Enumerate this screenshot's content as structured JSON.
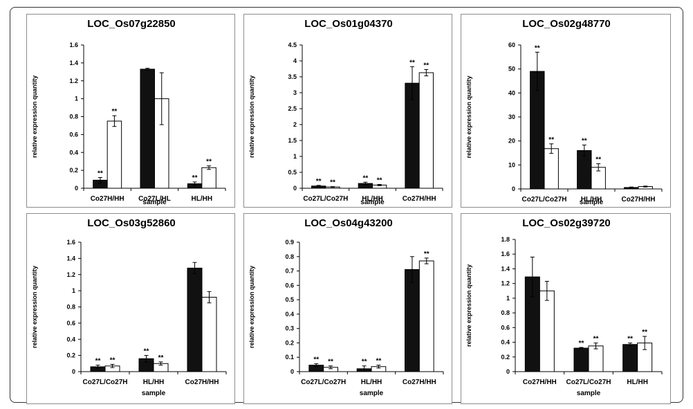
{
  "chart_data": [
    {
      "type": "bar",
      "title": "LOC_Os07g22850",
      "xlabel": "sample",
      "ylabel": "relative expression quantity",
      "ylim": [
        0,
        1.6
      ],
      "yticks": [
        "0",
        "0.2",
        "0.4",
        "0.6",
        "0.8",
        "1",
        "1.2",
        "1.4",
        "1.6"
      ],
      "categories": [
        "Co27H/HH",
        "Co27L/HL",
        "HL/HH"
      ],
      "series": [
        {
          "name": "filled",
          "color": "#111111",
          "values": [
            0.09,
            1.33,
            0.05
          ],
          "errors": [
            0.03,
            0.01,
            0.02
          ],
          "sig": [
            "**",
            "",
            "**"
          ]
        },
        {
          "name": "open",
          "color": "#ffffff",
          "values": [
            0.75,
            1.0,
            0.23
          ],
          "errors": [
            0.06,
            0.29,
            0.02
          ],
          "sig": [
            "**",
            "",
            "**"
          ]
        }
      ]
    },
    {
      "type": "bar",
      "title": "LOC_Os01g04370",
      "xlabel": "sample",
      "ylabel": "relative expression quantity",
      "ylim": [
        0,
        4.5
      ],
      "yticks": [
        "0",
        "0.5",
        "1",
        "1.5",
        "2",
        "2.5",
        "3",
        "3.5",
        "4",
        "4.5"
      ],
      "categories": [
        "Co27L/Co27H",
        "HL/HH",
        "Co27H/HH"
      ],
      "series": [
        {
          "name": "filled",
          "color": "#111111",
          "values": [
            0.07,
            0.15,
            3.3
          ],
          "errors": [
            0.02,
            0.04,
            0.52
          ],
          "sig": [
            "**",
            "**",
            "**"
          ]
        },
        {
          "name": "open",
          "color": "#ffffff",
          "values": [
            0.04,
            0.1,
            3.63
          ],
          "errors": [
            0.01,
            0.02,
            0.1
          ],
          "sig": [
            "**",
            "**",
            "**"
          ]
        }
      ]
    },
    {
      "type": "bar",
      "title": "LOC_Os02g48770",
      "xlabel": "sample",
      "ylabel": "relative expression quantity",
      "ylim": [
        0,
        60
      ],
      "yticks": [
        "0",
        "10",
        "20",
        "30",
        "40",
        "50",
        "60"
      ],
      "categories": [
        "Co27L/Co27H",
        "HL/HH",
        "Co27H/HH"
      ],
      "series": [
        {
          "name": "filled",
          "color": "#111111",
          "values": [
            49,
            16,
            0.6
          ],
          "errors": [
            8,
            2.3,
            0.2
          ],
          "sig": [
            "**",
            "**",
            ""
          ]
        },
        {
          "name": "open",
          "color": "#ffffff",
          "values": [
            16.8,
            9,
            1.0
          ],
          "errors": [
            2,
            1.5,
            0.2
          ],
          "sig": [
            "**",
            "**",
            ""
          ]
        }
      ]
    },
    {
      "type": "bar",
      "title": "LOC_Os03g52860",
      "xlabel": "sample",
      "ylabel": "relative expression quantity",
      "ylim": [
        0,
        1.6
      ],
      "yticks": [
        "0",
        "0.2",
        "0.4",
        "0.6",
        "0.8",
        "1",
        "1.2",
        "1.4",
        "1.6"
      ],
      "categories": [
        "Co27L/Co27H",
        "HL/HH",
        "Co27H/HH"
      ],
      "series": [
        {
          "name": "filled",
          "color": "#111111",
          "values": [
            0.06,
            0.16,
            1.28
          ],
          "errors": [
            0.02,
            0.04,
            0.07
          ],
          "sig": [
            "**",
            "**",
            ""
          ]
        },
        {
          "name": "open",
          "color": "#ffffff",
          "values": [
            0.07,
            0.1,
            0.92
          ],
          "errors": [
            0.02,
            0.02,
            0.07
          ],
          "sig": [
            "**",
            "**",
            ""
          ]
        }
      ]
    },
    {
      "type": "bar",
      "title": "LOC_Os04g43200",
      "xlabel": "sample",
      "ylabel": "relative expression quantity",
      "ylim": [
        0,
        0.9
      ],
      "yticks": [
        "0",
        "0.1",
        "0.2",
        "0.3",
        "0.4",
        "0.5",
        "0.6",
        "0.7",
        "0.8",
        "0.9"
      ],
      "categories": [
        "Co27L/Co27H",
        "HL/HH",
        "Co27H/HH"
      ],
      "series": [
        {
          "name": "filled",
          "color": "#111111",
          "values": [
            0.045,
            0.02,
            0.71
          ],
          "errors": [
            0.01,
            0.02,
            0.09
          ],
          "sig": [
            "**",
            "**",
            ""
          ]
        },
        {
          "name": "open",
          "color": "#ffffff",
          "values": [
            0.03,
            0.035,
            0.77
          ],
          "errors": [
            0.01,
            0.01,
            0.02
          ],
          "sig": [
            "**",
            "**",
            "**"
          ]
        }
      ]
    },
    {
      "type": "bar",
      "title": "LOC_Os02g39720",
      "xlabel": "sample",
      "ylabel": "relative expression quantity",
      "ylim": [
        0,
        1.8
      ],
      "yticks": [
        "0",
        "0.2",
        "0.4",
        "0.6",
        "0.8",
        "1",
        "1.2",
        "1.4",
        "1.6",
        "1.8"
      ],
      "categories": [
        "Co27H/HH",
        "Co27L/Co27H",
        "HL/HH"
      ],
      "series": [
        {
          "name": "filled",
          "color": "#111111",
          "values": [
            1.29,
            0.32,
            0.37
          ],
          "errors": [
            0.27,
            0.01,
            0.02
          ],
          "sig": [
            "",
            "**",
            "**"
          ]
        },
        {
          "name": "open",
          "color": "#ffffff",
          "values": [
            1.1,
            0.35,
            0.39
          ],
          "errors": [
            0.13,
            0.04,
            0.09
          ],
          "sig": [
            "",
            "**",
            "**"
          ]
        }
      ]
    }
  ]
}
